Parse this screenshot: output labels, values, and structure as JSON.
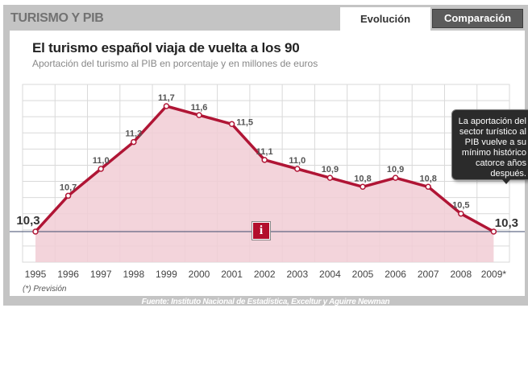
{
  "header": {
    "title": "TURISMO Y PIB",
    "tabs": [
      {
        "label": "Evolución",
        "active": true
      },
      {
        "label": "Comparación",
        "active": false
      }
    ]
  },
  "colors": {
    "line": "#b01535",
    "area": "#f1cdd5",
    "grid": "#d9d9d9",
    "reference_line": "#3c4a6b",
    "frame": "#c4c4c4",
    "tab_inactive": "#5b5b5b"
  },
  "chart_data": {
    "type": "area",
    "title": "El turismo español viaja de vuelta a los 90",
    "subtitle": "Aportación del turismo al PIB en porcentaje y en millones de euros",
    "categories": [
      "1995",
      "1996",
      "1997",
      "1998",
      "1999",
      "2000",
      "2001",
      "2002",
      "2003",
      "2004",
      "2005",
      "2006",
      "2007",
      "2008",
      "2009*"
    ],
    "series": [
      {
        "values": [
          10.3,
          10.7,
          11.0,
          11.3,
          11.7,
          11.6,
          11.5,
          11.1,
          11.0,
          10.9,
          10.8,
          10.9,
          10.8,
          10.5,
          10.3
        ]
      }
    ],
    "data_labels": [
      "10,3",
      "10,7",
      "11,0",
      "11,3",
      "11,7",
      "11,6",
      "11,5",
      "11,1",
      "11,0",
      "10,9",
      "10,8",
      "10,9",
      "10,8",
      "10,5",
      "10,3"
    ],
    "reference_line": 10.3,
    "ylim": [
      10.0,
      11.9
    ],
    "grid": true,
    "note": "(*) Previsión",
    "source": "Fuente: Instituto Nacional de Estadística, Exceltur y Aguirre Newman"
  },
  "tooltip": {
    "text": "La aportación del sector turístico al PIB vuelve a su mínimo histórico catorce años después."
  },
  "info_button": {
    "icon": "info-icon",
    "label": "i"
  }
}
